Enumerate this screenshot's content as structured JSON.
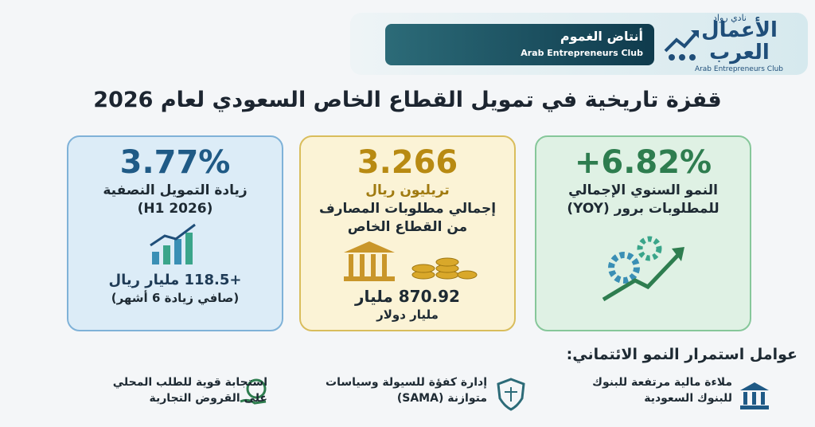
{
  "header": {
    "banner_ar": "أنتاض الغموم",
    "banner_en": "Arab Entrepreneurs Club",
    "logo_top": "نادي رواد",
    "logo_main": "الأعمال العرب",
    "logo_en": "Arab Entrepreneurs Club"
  },
  "title": "قفزة تاريخية في تمويل القطاع الخاص السعودي لعام 2026",
  "cards": [
    {
      "value": "3.77%",
      "lines": [
        "زيادة التمويل النصفية",
        "(H1 2026)"
      ],
      "sub_value": "+118.5 مليار ريال",
      "note": "(صافي زيادة 6 أشهر)"
    },
    {
      "value": "3.266",
      "unit": "تريليون ريال",
      "lines": [
        "إجمالي مطلوبات المصارف",
        "من القطاع الخاص"
      ],
      "sub_value": "870.92 مليار",
      "note": "مليار دولار"
    },
    {
      "value": "+6.82%",
      "lines": [
        "النمو السنوي الإجمالي",
        "للمطلوبات برور (YOY)"
      ]
    }
  ],
  "factors_heading": "عوامل استمرار النمو الائتماني:",
  "factors": [
    [
      "ملاءة مالية مرتفعة للبنوك",
      "للبنوك السعودية"
    ],
    [
      "إدارة كفؤة للسيولة وسياسات",
      "متوازنة (SAMA)"
    ],
    [
      "استجابة قوية للطلب المحلي",
      "على القروض التجارية"
    ]
  ]
}
